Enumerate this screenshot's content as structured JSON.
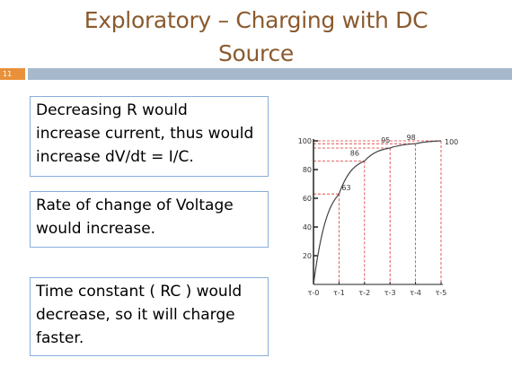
{
  "slide": {
    "title_line1": "Exploratory – Charging with DC",
    "title_line2": "Source",
    "slide_number": "11",
    "colors": {
      "title": "#8a5a2e",
      "number_badge": "#e8913a",
      "rule": "#a6b9cc",
      "box_border": "#88aedb"
    }
  },
  "boxes": [
    {
      "lines": [
        "Decreasing R would",
        "increase current, thus would",
        "increase dV/dt = I/C."
      ]
    },
    {
      "lines": [
        "Rate of change of Voltage",
        "would increase."
      ]
    },
    {
      "lines": [
        "Time constant ( RC ) would",
        "decrease, so it will charge",
        "faster."
      ]
    }
  ],
  "chart_data": {
    "type": "line",
    "x_tick_labels": [
      "τ-0",
      "τ-1",
      "τ-2",
      "τ-3",
      "τ-4",
      "τ-5"
    ],
    "x": [
      0,
      1,
      2,
      3,
      4,
      5
    ],
    "y_tick_labels": [
      "20",
      "40",
      "60",
      "80",
      "100"
    ],
    "ylim": [
      0,
      100
    ],
    "series": [
      {
        "values": [
          0,
          63,
          86,
          95,
          98,
          100
        ]
      }
    ],
    "point_labels": [
      "63",
      "86",
      "95",
      "98",
      "100"
    ],
    "colors": {
      "curve": "#444444",
      "guides": "#e03030"
    }
  }
}
